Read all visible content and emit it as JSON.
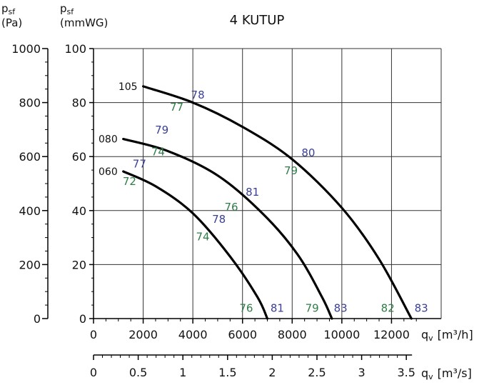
{
  "chart_data": {
    "type": "line",
    "title": "4 KUTUP",
    "grid": true,
    "colors": {
      "grid": "#333333",
      "curve": "#000000",
      "eff_blue": "#3a3f96",
      "eff_green": "#2f7d46"
    },
    "y_left": {
      "label_main": "p",
      "label_sub": "sf",
      "unit": "(Pa)",
      "range": [
        0,
        1000
      ],
      "ticks": [
        "0",
        "200",
        "400",
        "600",
        "800",
        "1000"
      ]
    },
    "y_right": {
      "label_main": "p",
      "label_sub": "sf",
      "unit": "(mmWG)",
      "range": [
        0,
        100
      ],
      "ticks": [
        "0",
        "20",
        "40",
        "60",
        "80",
        "100"
      ]
    },
    "x_m3h": {
      "range": [
        0,
        14000
      ],
      "ticks": [
        "0",
        "2000",
        "4000",
        "6000",
        "8000",
        "10000",
        "12000"
      ],
      "label": "q",
      "label_sub": "v",
      "unit": "[m³/h]"
    },
    "x_m3s": {
      "range": [
        0,
        3.89
      ],
      "ticks": [
        "0",
        "0.5",
        "1",
        "1.5",
        "2",
        "2.5",
        "3",
        "3.5"
      ],
      "label": "q",
      "label_sub": "v",
      "unit": "[m³/s]"
    },
    "series": [
      {
        "name": "105",
        "x": [
          2000,
          4000,
          6000,
          8000,
          10000,
          11500,
          12800
        ],
        "y": [
          86,
          80,
          71,
          59,
          41,
          22,
          0
        ]
      },
      {
        "name": "080",
        "x": [
          1200,
          3000,
          5000,
          6800,
          8200,
          9200,
          9600
        ],
        "y": [
          66.5,
          62,
          53,
          39,
          24,
          8,
          0
        ]
      },
      {
        "name": "060",
        "x": [
          1200,
          2500,
          4000,
          5500,
          6600,
          7000
        ],
        "y": [
          54.5,
          49,
          39,
          23,
          8,
          0
        ]
      }
    ],
    "efficiency_labels": [
      {
        "text": "78",
        "color": "blue",
        "x": 4200,
        "y": 81.5
      },
      {
        "text": "77",
        "color": "green",
        "x": 3350,
        "y": 77
      },
      {
        "text": "80",
        "color": "blue",
        "x": 8650,
        "y": 60
      },
      {
        "text": "79",
        "color": "green",
        "x": 7950,
        "y": 53.5
      },
      {
        "text": "79",
        "color": "blue",
        "x": 2750,
        "y": 68.5
      },
      {
        "text": "74",
        "color": "green",
        "x": 2600,
        "y": 60.5
      },
      {
        "text": "77",
        "color": "blue",
        "x": 1850,
        "y": 56
      },
      {
        "text": "72",
        "color": "green",
        "x": 1450,
        "y": 49.5
      },
      {
        "text": "81",
        "color": "blue",
        "x": 6400,
        "y": 45.5
      },
      {
        "text": "76",
        "color": "green",
        "x": 5550,
        "y": 40
      },
      {
        "text": "78",
        "color": "blue",
        "x": 5050,
        "y": 35.5
      },
      {
        "text": "74",
        "color": "green",
        "x": 4400,
        "y": 29
      },
      {
        "text": "76",
        "color": "green",
        "x": 6150,
        "y": 2.5
      },
      {
        "text": "81",
        "color": "blue",
        "x": 7400,
        "y": 2.5
      },
      {
        "text": "79",
        "color": "green",
        "x": 8800,
        "y": 2.5
      },
      {
        "text": "83",
        "color": "blue",
        "x": 9950,
        "y": 2.5
      },
      {
        "text": "82",
        "color": "green",
        "x": 11850,
        "y": 2.5
      },
      {
        "text": "83",
        "color": "blue",
        "x": 13200,
        "y": 2.5
      }
    ]
  }
}
